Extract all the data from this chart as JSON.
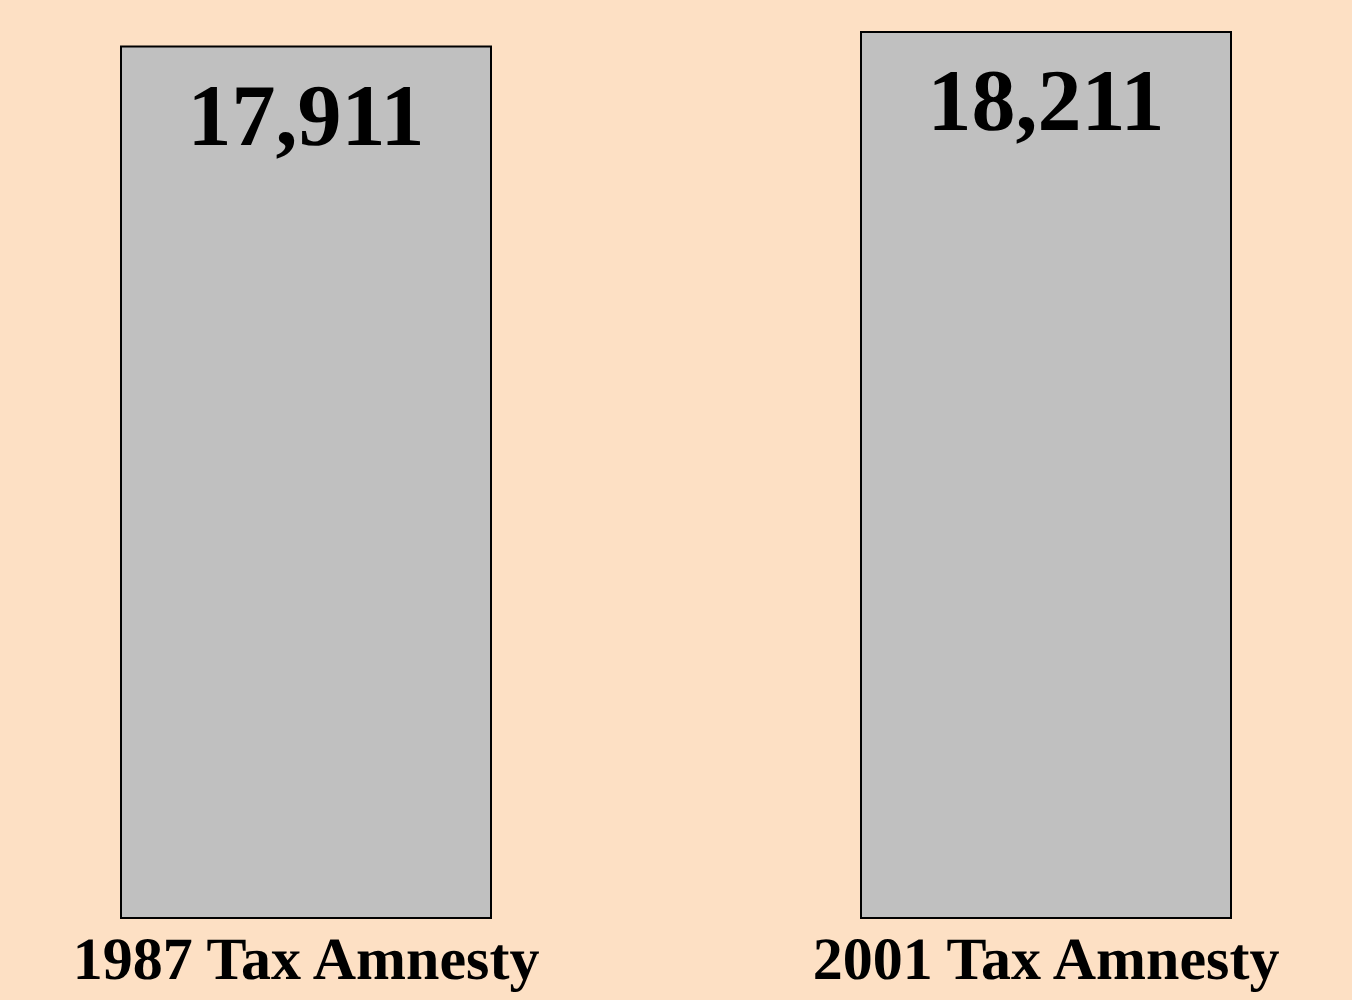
{
  "chart_data": {
    "type": "bar",
    "categories": [
      "1987 Tax Amnesty",
      "2001 Tax Amnesty"
    ],
    "values": [
      17911,
      18211
    ],
    "value_labels": [
      "17,911",
      "18,211"
    ],
    "color": "#c0c0c0",
    "grid": false
  }
}
